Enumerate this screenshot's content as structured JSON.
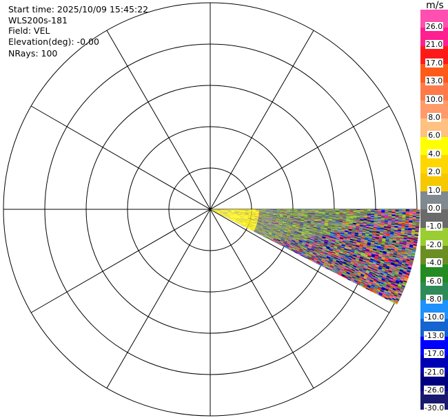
{
  "info": {
    "start_time": "Start time: 2025/10/09 15:45:22",
    "instrument": "WLS200s-181",
    "field": "Field: VEL",
    "elevation": "Elevation(deg): -0.00",
    "nrays": "NRays: 100"
  },
  "colorbar": {
    "unit": "m/s",
    "bins": [
      {
        "label": "26.0",
        "color": "#ff4fb0"
      },
      {
        "label": "21.0",
        "color": "#ff1f8f"
      },
      {
        "label": "17.0",
        "color": "#ff1a1a"
      },
      {
        "label": "13.0",
        "color": "#ff5a1a"
      },
      {
        "label": "10.0",
        "color": "#ff7a4a"
      },
      {
        "label": "8.0",
        "color": "#ff9a6a"
      },
      {
        "label": "6.0",
        "color": "#ffc080"
      },
      {
        "label": "4.0",
        "color": "#ffff00"
      },
      {
        "label": "2.0",
        "color": "#ffd700"
      },
      {
        "label": "1.0",
        "color": "#f5c800"
      },
      {
        "label": "0.0",
        "color": "#808890"
      },
      {
        "label": "-1.0",
        "color": "#6a6a6a"
      },
      {
        "label": "-2.0",
        "color": "#9acd32"
      },
      {
        "label": "-4.0",
        "color": "#6b8e23"
      },
      {
        "label": "-6.0",
        "color": "#228b22"
      },
      {
        "label": "-8.0",
        "color": "#2e8b57"
      },
      {
        "label": "-10.0",
        "color": "#1e90ff"
      },
      {
        "label": "-13.0",
        "color": "#1464d2"
      },
      {
        "label": "-17.0",
        "color": "#0000ff"
      },
      {
        "label": "-21.0",
        "color": "#0000b4"
      },
      {
        "label": "-26.0",
        "color": "#000080"
      },
      {
        "label": "-30.0",
        "color": "#191970"
      }
    ]
  },
  "chart_data": {
    "type": "heatmap",
    "field": "VEL",
    "unit": "m/s",
    "nrays": 100,
    "elevation_deg": -0.0,
    "azimuth_range_deg": [
      90,
      117
    ],
    "rings": 5,
    "spokes_every_deg": 30,
    "colorbar_range": [
      -30.0,
      26.0
    ]
  }
}
